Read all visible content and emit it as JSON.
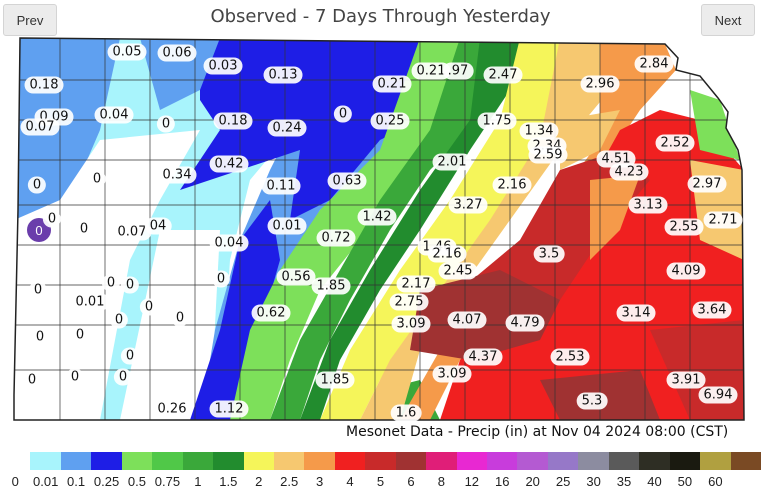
{
  "header": {
    "title": "Observed - 7 Days Through Yesterday",
    "prev_label": "Prev",
    "next_label": "Next"
  },
  "caption": "Mesonet Data - Precip (in) at Nov 04 2024 08:00 (CST)",
  "legend": {
    "items": [
      {
        "label": "0",
        "color": "#ffffff"
      },
      {
        "label": "0.01",
        "color": "#a8f4fc"
      },
      {
        "label": "0.1",
        "color": "#5fa0f0"
      },
      {
        "label": "0.25",
        "color": "#1e1ee6"
      },
      {
        "label": "0.5",
        "color": "#7de05a"
      },
      {
        "label": "0.75",
        "color": "#50c848"
      },
      {
        "label": "1",
        "color": "#3aa83a"
      },
      {
        "label": "1.5",
        "color": "#228c2e"
      },
      {
        "label": "2",
        "color": "#f5f55a"
      },
      {
        "label": "2.5",
        "color": "#f6c870"
      },
      {
        "label": "3",
        "color": "#f59a4a"
      },
      {
        "label": "4",
        "color": "#f02020"
      },
      {
        "label": "5",
        "color": "#c82a2a"
      },
      {
        "label": "6",
        "color": "#a03232"
      },
      {
        "label": "8",
        "color": "#e01e78"
      },
      {
        "label": "12",
        "color": "#e828d2"
      },
      {
        "label": "16",
        "color": "#c83cdc"
      },
      {
        "label": "20",
        "color": "#b45ad2"
      },
      {
        "label": "25",
        "color": "#9678c8"
      },
      {
        "label": "30",
        "color": "#8c8ca0"
      },
      {
        "label": "35",
        "color": "#5a5a5a"
      },
      {
        "label": "40",
        "color": "#2e2e24"
      },
      {
        "label": "50",
        "color": "#1a1a10"
      },
      {
        "label": "60",
        "color": "#b0a040"
      },
      {
        "label": "",
        "color": "#7a4a24"
      }
    ]
  },
  "stations": [
    {
      "v": "0.05"
    },
    {
      "v": "0.06"
    },
    {
      "v": "0.03"
    },
    {
      "v": "0.13"
    },
    {
      "v": "0.21"
    },
    {
      "v": "0.21"
    },
    {
      "v": ".97"
    },
    {
      "v": "2.47"
    },
    {
      "v": "2.96"
    },
    {
      "v": "2.84"
    },
    {
      "v": "0.18"
    },
    {
      "v": "0.09"
    },
    {
      "v": "0.07"
    },
    {
      "v": "0.04"
    },
    {
      "v": "0"
    },
    {
      "v": "0.18"
    },
    {
      "v": "0.24"
    },
    {
      "v": "0"
    },
    {
      "v": "0.25"
    },
    {
      "v": "1.75"
    },
    {
      "v": "1.34"
    },
    {
      "v": "2.34"
    },
    {
      "v": "2.59"
    },
    {
      "v": "2.52"
    },
    {
      "v": "0.42"
    },
    {
      "v": "0.34"
    },
    {
      "v": "0"
    },
    {
      "v": "0"
    },
    {
      "v": "0.11"
    },
    {
      "v": "0.63"
    },
    {
      "v": "2.01"
    },
    {
      "v": "4.51"
    },
    {
      "v": "4.23"
    },
    {
      "v": "2.97"
    },
    {
      "v": "2.16"
    },
    {
      "v": "0"
    },
    {
      "v": "0"
    },
    {
      "v": "0.07"
    },
    {
      "v": "04"
    },
    {
      "v": "0.04"
    },
    {
      "v": "0.01"
    },
    {
      "v": "3.27"
    },
    {
      "v": "1.42"
    },
    {
      "v": "3.13"
    },
    {
      "v": "2.55"
    },
    {
      "v": "2.71"
    },
    {
      "v": "0.72"
    },
    {
      "v": "1.46"
    },
    {
      "v": "2.16"
    },
    {
      "v": "3.5"
    },
    {
      "v": "2.45"
    },
    {
      "v": "4.09"
    },
    {
      "v": "0"
    },
    {
      "v": "0"
    },
    {
      "v": "0.56"
    },
    {
      "v": "1.85"
    },
    {
      "v": "2.17"
    },
    {
      "v": "0"
    },
    {
      "v": "0.01"
    },
    {
      "v": "0"
    },
    {
      "v": "0"
    },
    {
      "v": "0"
    },
    {
      "v": "0"
    },
    {
      "v": "0.62"
    },
    {
      "v": "2.75"
    },
    {
      "v": "3.09"
    },
    {
      "v": "4.07"
    },
    {
      "v": "4.79"
    },
    {
      "v": "3.14"
    },
    {
      "v": "3.64"
    },
    {
      "v": "0"
    },
    {
      "v": "0"
    },
    {
      "v": "0"
    },
    {
      "v": "4.37"
    },
    {
      "v": "2.53"
    },
    {
      "v": "0"
    },
    {
      "v": "0"
    },
    {
      "v": "0"
    },
    {
      "v": "1.85"
    },
    {
      "v": "3.09"
    },
    {
      "v": "3.91"
    },
    {
      "v": "6.94"
    },
    {
      "v": "0.26"
    },
    {
      "v": "1.12"
    },
    {
      "v": "1.6"
    },
    {
      "v": "5.3"
    }
  ],
  "badge": "0"
}
